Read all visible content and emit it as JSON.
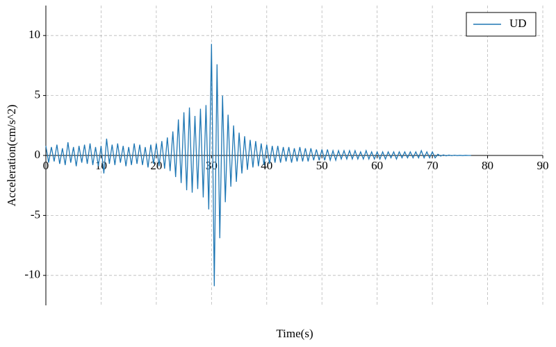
{
  "chart_data": {
    "type": "line",
    "xlabel": "Time(s)",
    "ylabel": "Acceleration(cm/s^2)",
    "x": [
      0,
      0.5,
      1,
      1.5,
      2,
      2.5,
      3,
      3.5,
      4,
      4.5,
      5,
      5.5,
      6,
      6.5,
      7,
      7.5,
      8,
      8.5,
      9,
      9.5,
      10,
      10.5,
      11,
      11.5,
      12,
      12.5,
      13,
      13.5,
      14,
      14.5,
      15,
      15.5,
      16,
      16.5,
      17,
      17.5,
      18,
      18.5,
      19,
      19.5,
      20,
      20.5,
      21,
      21.5,
      22,
      22.5,
      23,
      23.5,
      24,
      24.5,
      25,
      25.5,
      26,
      26.5,
      27,
      27.5,
      28,
      28.5,
      29,
      29.5,
      30,
      30.5,
      31,
      31.5,
      32,
      32.5,
      33,
      33.5,
      34,
      34.5,
      35,
      35.5,
      36,
      36.5,
      37,
      37.5,
      38,
      38.5,
      39,
      39.5,
      40,
      40.5,
      41,
      41.5,
      42,
      42.5,
      43,
      43.5,
      44,
      44.5,
      45,
      45.5,
      46,
      46.5,
      47,
      47.5,
      48,
      48.5,
      49,
      49.5,
      50,
      50.5,
      51,
      51.5,
      52,
      52.5,
      53,
      53.5,
      54,
      54.5,
      55,
      55.5,
      56,
      56.5,
      57,
      57.5,
      58,
      58.5,
      59,
      59.5,
      60,
      60.5,
      61,
      61.5,
      62,
      62.5,
      63,
      63.5,
      64,
      64.5,
      65,
      65.5,
      66,
      66.5,
      67,
      67.5,
      68,
      68.5,
      69,
      69.5,
      70,
      70.5,
      71,
      71.5,
      72,
      72.5,
      73,
      73.5,
      74,
      74.5,
      75,
      75.5,
      76,
      76.5,
      77
    ],
    "series": [
      {
        "name": "UD",
        "color": "#1f77b4",
        "values": [
          0.8,
          -0.6,
          0.7,
          -0.5,
          0.9,
          -0.7,
          0.6,
          -0.8,
          1.1,
          -0.6,
          0.7,
          -0.9,
          0.8,
          -0.6,
          0.9,
          -0.7,
          1.0,
          -0.8,
          0.7,
          -0.9,
          0.8,
          -1.5,
          1.4,
          -0.7,
          0.9,
          -0.8,
          1.0,
          -0.6,
          0.8,
          -0.9,
          0.7,
          -0.8,
          1.0,
          -0.7,
          0.9,
          -0.8,
          0.7,
          -1.0,
          0.9,
          -0.7,
          1.0,
          -0.9,
          1.2,
          -1.1,
          1.5,
          -1.3,
          2.0,
          -1.8,
          3.0,
          -2.3,
          3.6,
          -2.9,
          4.0,
          -3.1,
          3.3,
          -2.8,
          3.9,
          -3.5,
          4.2,
          -4.5,
          9.3,
          -10.9,
          7.6,
          -6.9,
          5.0,
          -3.9,
          3.4,
          -2.6,
          2.5,
          -2.2,
          1.9,
          -1.5,
          1.6,
          -1.2,
          1.3,
          -1.0,
          1.2,
          -0.9,
          1.0,
          -0.8,
          0.9,
          -0.7,
          0.8,
          -0.6,
          0.8,
          -0.6,
          0.7,
          -0.5,
          0.7,
          -0.6,
          0.6,
          -0.5,
          0.7,
          -0.5,
          0.6,
          -0.5,
          0.6,
          -0.4,
          0.5,
          -0.4,
          0.5,
          -0.4,
          0.5,
          -0.4,
          0.4,
          -0.4,
          0.4,
          -0.3,
          0.4,
          -0.3,
          0.4,
          -0.3,
          0.4,
          -0.3,
          0.3,
          -0.3,
          0.4,
          -0.3,
          0.3,
          -0.3,
          0.3,
          -0.3,
          0.3,
          -0.3,
          0.3,
          -0.2,
          0.3,
          -0.3,
          0.3,
          -0.2,
          0.3,
          -0.2,
          0.3,
          -0.2,
          0.3,
          -0.2,
          0.4,
          -0.2,
          0.3,
          -0.2,
          0.3,
          -0.2,
          0.1,
          -0.05,
          0.05,
          -0.03,
          0.03,
          -0.02,
          0.02,
          -0.01,
          0.01,
          -0.01,
          0.01,
          0,
          0
        ]
      }
    ],
    "xlim": [
      0,
      90
    ],
    "xticks": [
      0,
      10,
      20,
      30,
      40,
      50,
      60,
      70,
      80,
      90
    ],
    "ylim": [
      -12.5,
      12.5
    ],
    "yticks": [
      -10,
      -5,
      0,
      5,
      10
    ],
    "grid": true,
    "legend": "upper right"
  }
}
